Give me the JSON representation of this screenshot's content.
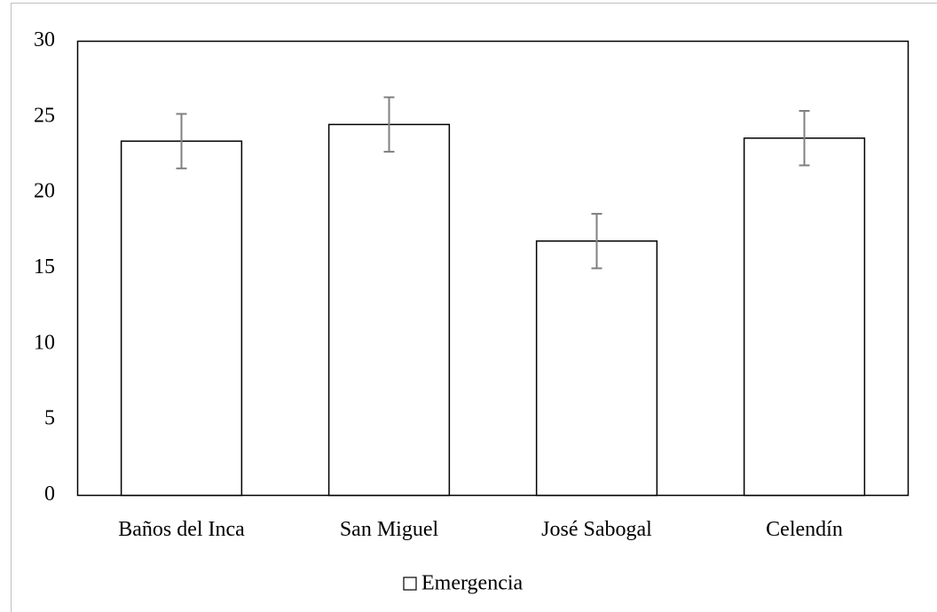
{
  "chart_data": {
    "type": "bar",
    "categories": [
      "Baños del Inca",
      "San Miguel",
      "José Sabogal",
      "Celendín"
    ],
    "series": [
      {
        "name": "Emergencia",
        "color": "#ffffff",
        "values": [
          23.4,
          24.5,
          16.8,
          23.6
        ],
        "errors": [
          1.8,
          1.8,
          1.8,
          1.8
        ]
      }
    ],
    "error_color": "#808080",
    "ylim": [
      0,
      30
    ],
    "yticks": [
      0,
      5,
      10,
      15,
      20,
      25,
      30
    ],
    "grid": false,
    "legend": "bottom"
  }
}
